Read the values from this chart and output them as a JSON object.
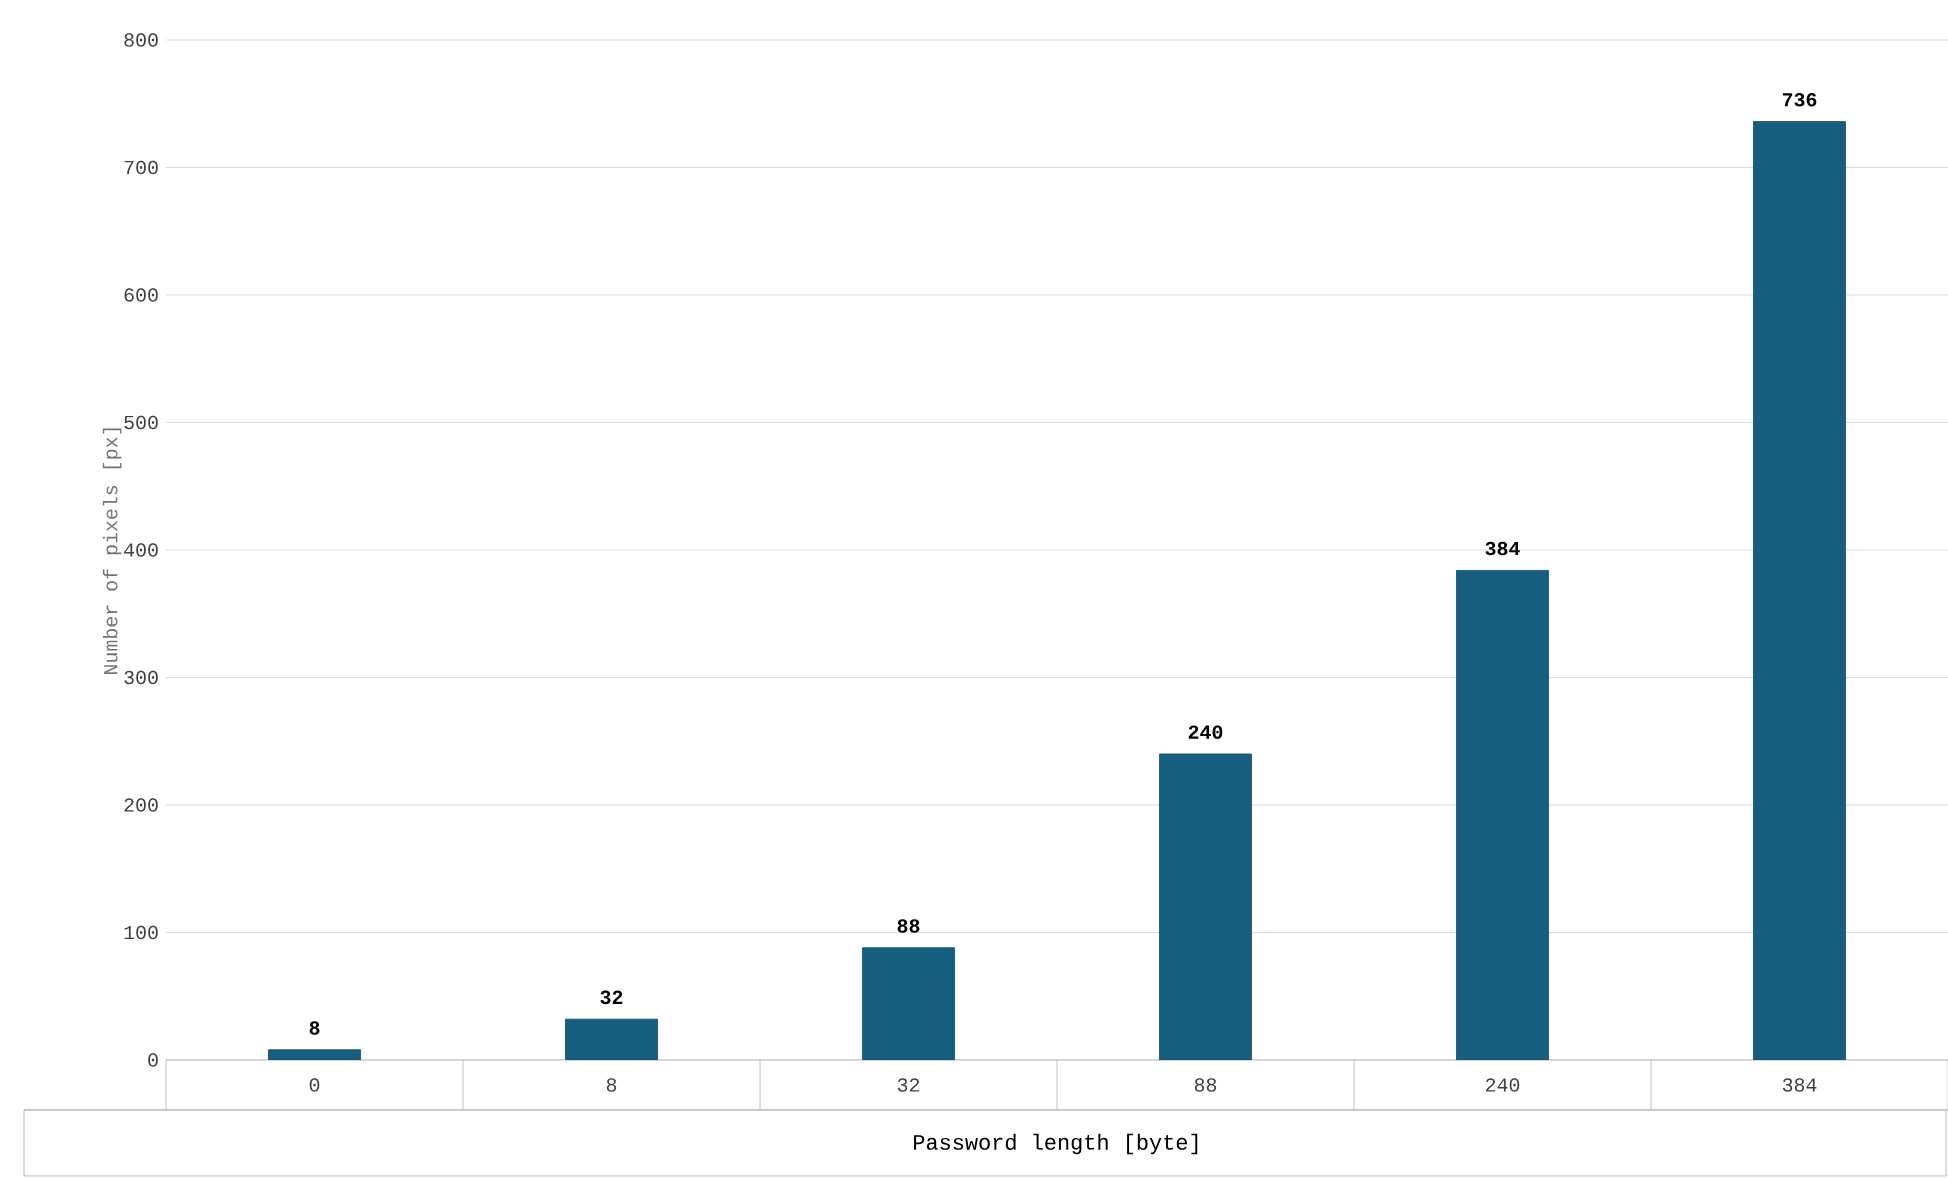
{
  "chart_data": {
    "type": "bar",
    "categories": [
      "0",
      "8",
      "32",
      "88",
      "240",
      "384"
    ],
    "values": [
      8,
      32,
      88,
      240,
      384,
      736
    ],
    "color": "#155e80",
    "xlabel": "Password length [byte]",
    "ylabel": "Number of pixels [px]",
    "ylim": [
      0,
      800
    ],
    "yticks": [
      0,
      100,
      200,
      300,
      400,
      500,
      600,
      700,
      800
    ],
    "grid": "y",
    "data_labels": true
  }
}
